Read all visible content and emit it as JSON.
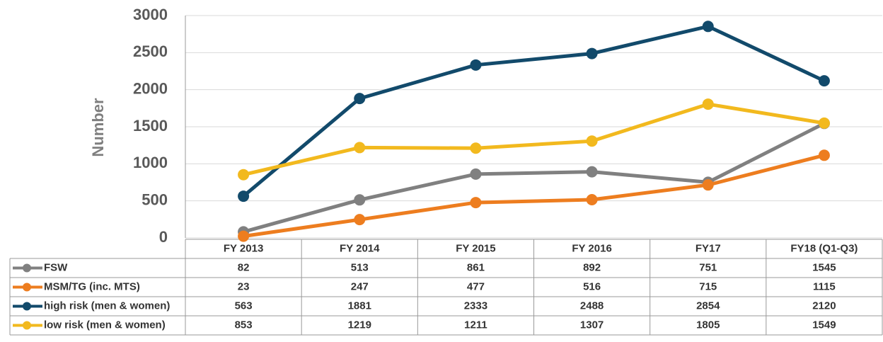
{
  "chart_data": {
    "type": "line",
    "y_label": "Number",
    "categories": [
      "FY 2013",
      "FY 2014",
      "FY 2015",
      "FY 2016",
      "FY17",
      "FY18 (Q1-Q3)"
    ],
    "series": [
      {
        "name": "FSW",
        "color": "#808080",
        "values": [
          82,
          513,
          861,
          892,
          751,
          1545
        ]
      },
      {
        "name": "MSM/TG (inc. MTS)",
        "color": "#ed7d1f",
        "values": [
          23,
          247,
          477,
          516,
          715,
          1115
        ]
      },
      {
        "name": "high risk (men & women)",
        "color": "#124a6b",
        "values": [
          563,
          1881,
          2333,
          2488,
          2854,
          2120
        ]
      },
      {
        "name": "low risk (men & women)",
        "color": "#f2b91e",
        "values": [
          853,
          1219,
          1211,
          1307,
          1805,
          1549
        ]
      }
    ],
    "ylim": [
      0,
      3000
    ],
    "yticks": [
      0,
      500,
      1000,
      1500,
      2000,
      2500,
      3000
    ],
    "grid": true
  }
}
